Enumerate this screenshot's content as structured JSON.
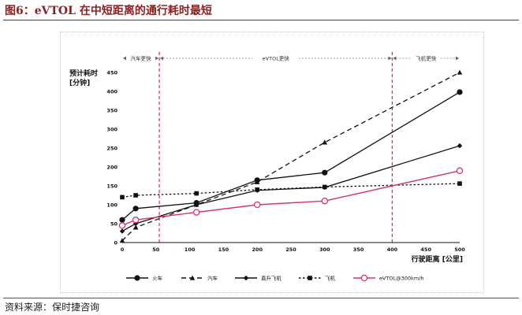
{
  "figure": {
    "title": "图6：eVTOL 在中短距离的通行耗时最短",
    "source": "资料来源：保时捷咨询"
  },
  "colors": {
    "title": "#8b1f1f",
    "black_series": "#111111",
    "evtol_series": "#d9336b",
    "region_divider": "#d9304a"
  },
  "chart_data": {
    "type": "line",
    "xlabel": "行驶距离 [公里]",
    "ylabel_line1": "预计耗时",
    "ylabel_line2": "[分钟]",
    "xlim": [
      0,
      500
    ],
    "ylim": [
      0,
      450
    ],
    "xticks": [
      "0",
      "50",
      "100",
      "150",
      "200",
      "250",
      "300",
      "350",
      "400",
      "450",
      "500"
    ],
    "yticks": [
      "0",
      "50",
      "100",
      "150",
      "200",
      "250",
      "300",
      "350",
      "400",
      "450"
    ],
    "grid": false,
    "legend_position": "bottom",
    "region_dividers_x": [
      55,
      400
    ],
    "regions": [
      {
        "label": "汽车更快",
        "from": 0,
        "to": 55
      },
      {
        "label": "eVTOL更快",
        "from": 55,
        "to": 400
      },
      {
        "label": "飞机更快",
        "from": 400,
        "to": 500
      }
    ],
    "series": [
      {
        "name": "火车",
        "style": "solid",
        "marker": "circle",
        "x": [
          0,
          20,
          110,
          200,
          300,
          500
        ],
        "y": [
          60,
          90,
          105,
          165,
          185,
          398
        ]
      },
      {
        "name": "汽车",
        "style": "dashed",
        "marker": "triangle",
        "x": [
          0,
          20,
          110,
          200,
          300,
          500
        ],
        "y": [
          5,
          40,
          100,
          160,
          265,
          450
        ]
      },
      {
        "name": "直升飞机",
        "style": "solid",
        "marker": "diamond",
        "x": [
          0,
          20,
          110,
          200,
          300,
          500
        ],
        "y": [
          30,
          50,
          100,
          138,
          146,
          256
        ]
      },
      {
        "name": "飞机",
        "style": "dashed-fine",
        "marker": "square",
        "x": [
          0,
          20,
          110,
          200,
          300,
          500
        ],
        "y": [
          120,
          125,
          130,
          140,
          147,
          156
        ]
      },
      {
        "name": "eVTOL@300km/h",
        "style": "solid",
        "marker": "hollow-circle",
        "x": [
          0,
          20,
          110,
          200,
          300,
          500
        ],
        "y": [
          45,
          60,
          80,
          100,
          110,
          190
        ]
      }
    ]
  }
}
